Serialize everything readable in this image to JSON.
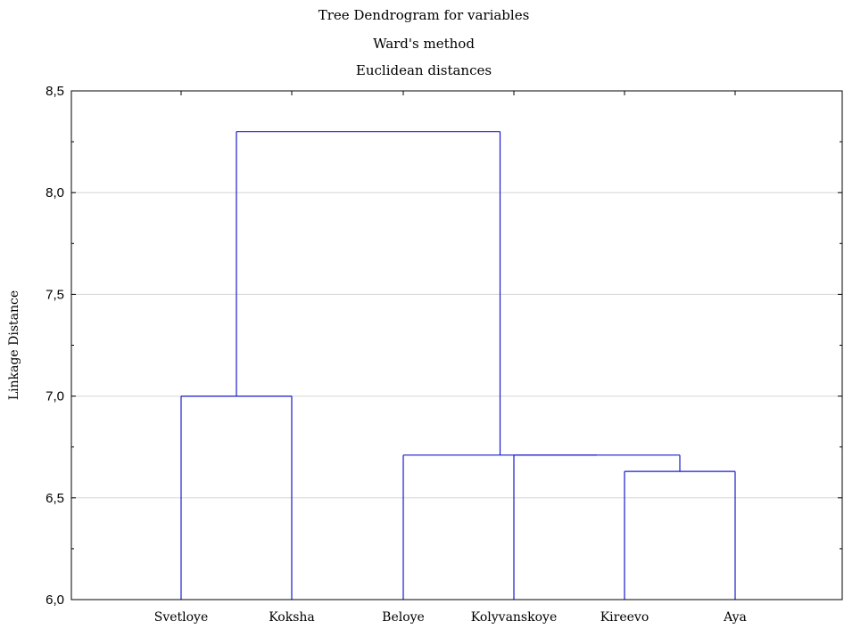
{
  "chart_data": {
    "type": "dendrogram",
    "title": "Tree Dendrogram for variables",
    "subtitle": [
      "Ward's method",
      "Euclidean distances"
    ],
    "ylabel": "Linkage Distance",
    "xlabel": "",
    "ylim": [
      6.0,
      8.5
    ],
    "yticks": [
      6.0,
      6.5,
      7.0,
      7.5,
      8.0,
      8.5
    ],
    "ytick_labels": [
      "6,0",
      "6,5",
      "7,0",
      "7,5",
      "8,0",
      "8,5"
    ],
    "grid": true,
    "leaves": [
      "Svetloye",
      "Koksha",
      "Beloye",
      "Kolyvanskoye",
      "Kireevo",
      "Aya"
    ],
    "merges": [
      {
        "members": [
          "Kireevo",
          "Aya"
        ],
        "height": 6.63
      },
      {
        "members": [
          "Kolyvanskoye",
          "Kireevo",
          "Aya"
        ],
        "height": 6.71
      },
      {
        "members": [
          "Beloye",
          "Kolyvanskoye",
          "Kireevo",
          "Aya"
        ],
        "height": 6.71
      },
      {
        "members": [
          "Svetloye",
          "Koksha"
        ],
        "height": 7.0
      },
      {
        "members": [
          "Svetloye",
          "Koksha",
          "Beloye",
          "Kolyvanskoye",
          "Kireevo",
          "Aya"
        ],
        "height": 8.3
      }
    ],
    "colors": {
      "links": "#1a1acc",
      "grid": "#d6d6d6",
      "axis": "#000000"
    }
  }
}
